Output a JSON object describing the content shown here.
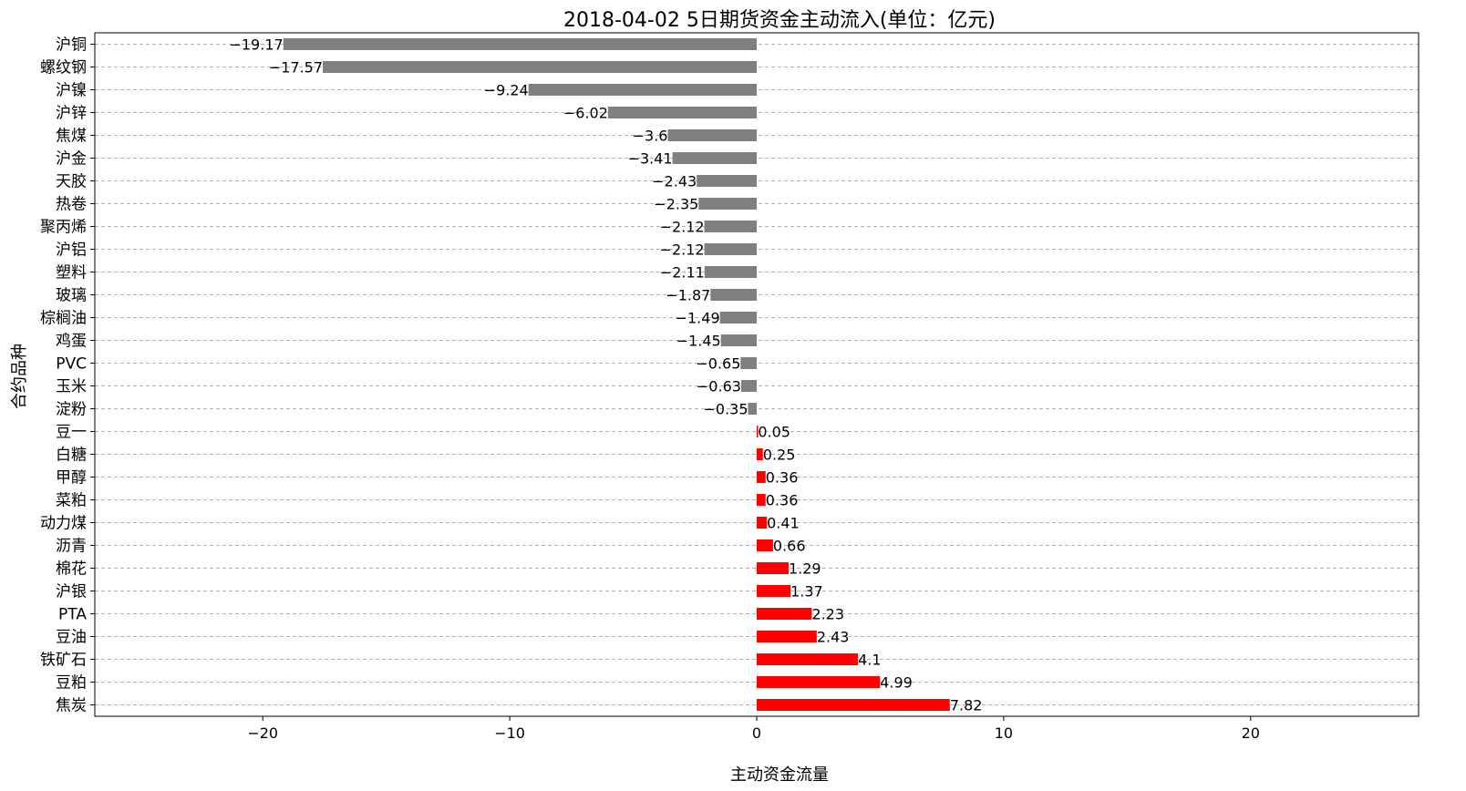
{
  "chart_data": {
    "type": "bar",
    "orientation": "horizontal",
    "title": "2018-04-02  5日期货资金主动流入(单位：亿元)",
    "xlabel": "主动资金流量",
    "ylabel": "合约品种",
    "xlim": [
      -26.8,
      26.8
    ],
    "xticks": [
      -20,
      -10,
      0,
      10,
      20
    ],
    "xtick_labels": [
      "−20",
      "−10",
      "0",
      "10",
      "20"
    ],
    "grid": "horizontal dashed",
    "colors": {
      "negative": "#808080",
      "positive": "#ff0000"
    },
    "categories": [
      "沪铜",
      "螺纹钢",
      "沪镍",
      "沪锌",
      "焦煤",
      "沪金",
      "天胶",
      "热卷",
      "聚丙烯",
      "沪铝",
      "塑料",
      "玻璃",
      "棕榈油",
      "鸡蛋",
      "PVC",
      "玉米",
      "淀粉",
      "豆一",
      "白糖",
      "甲醇",
      "菜粕",
      "动力煤",
      "沥青",
      "棉花",
      "沪银",
      "PTA",
      "豆油",
      "铁矿石",
      "豆粕",
      "焦炭"
    ],
    "values": [
      -19.17,
      -17.57,
      -9.24,
      -6.02,
      -3.6,
      -3.41,
      -2.43,
      -2.35,
      -2.12,
      -2.12,
      -2.11,
      -1.87,
      -1.49,
      -1.45,
      -0.65,
      -0.63,
      -0.35,
      0.05,
      0.25,
      0.36,
      0.36,
      0.41,
      0.66,
      1.29,
      1.37,
      2.23,
      2.43,
      4.1,
      4.99,
      7.82
    ],
    "value_labels": [
      "−19.17",
      "−17.57",
      "−9.24",
      "−6.02",
      "−3.6",
      "−3.41",
      "−2.43",
      "−2.35",
      "−2.12",
      "−2.12",
      "−2.11",
      "−1.87",
      "−1.49",
      "−1.45",
      "−0.65",
      "−0.63",
      "−0.35",
      "0.05",
      "0.25",
      "0.36",
      "0.36",
      "0.41",
      "0.66",
      "1.29",
      "1.37",
      "2.23",
      "2.43",
      "4.1",
      "4.99",
      "7.82"
    ]
  }
}
